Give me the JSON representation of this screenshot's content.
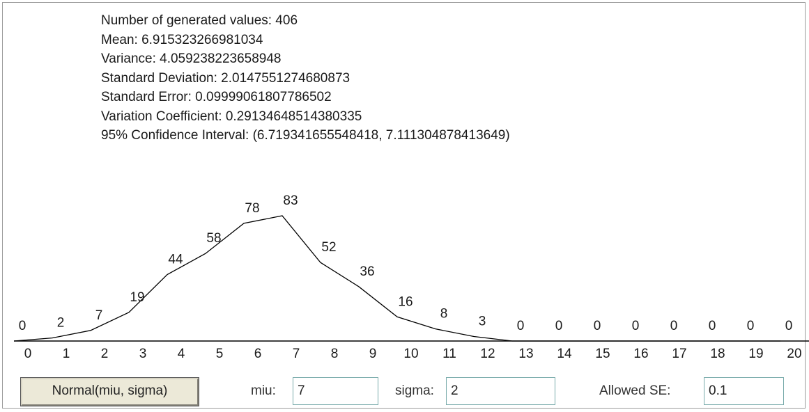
{
  "stats": [
    "Number of generated values: 406",
    "Mean: 6.915323266981034",
    "Variance: 4.059238223658948",
    "Standard Deviation: 2.0147551274680873",
    "Standard Error: 0.09999061807786502",
    "Variation Coefficient: 0.29134648514380335",
    "95% Confidence Interval: (6.719341655548418, 7.111304878413649)"
  ],
  "chart_data": {
    "type": "line",
    "categories": [
      "0",
      "1",
      "2",
      "3",
      "4",
      "5",
      "6",
      "7",
      "8",
      "9",
      "10",
      "11",
      "12",
      "13",
      "14",
      "15",
      "16",
      "17",
      "18",
      "19",
      "20"
    ],
    "values": [
      0,
      2,
      7,
      19,
      44,
      58,
      78,
      83,
      52,
      36,
      16,
      8,
      3,
      0,
      0,
      0,
      0,
      0,
      0,
      0,
      0
    ],
    "color": "#000000"
  },
  "controls": {
    "button": "Normal(miu, sigma)",
    "fields": [
      {
        "label": "miu:",
        "value": "7"
      },
      {
        "label": "sigma:",
        "value": "2"
      },
      {
        "label": "Allowed SE:",
        "value": "0.1"
      }
    ]
  }
}
